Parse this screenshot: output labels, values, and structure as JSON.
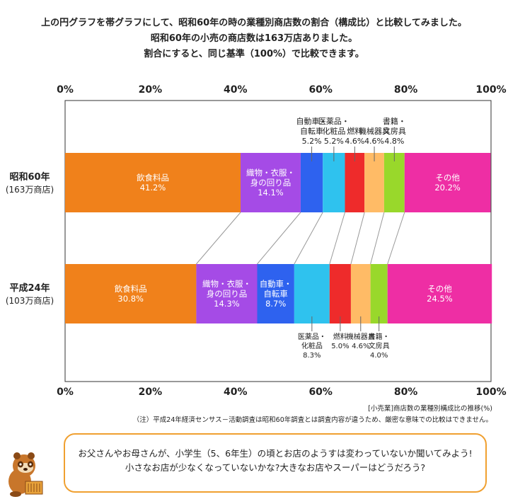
{
  "intro": {
    "line1": "上の円グラフを帯グラフにして、昭和60年の時の業種別商店数の割合（構成比）と比較してみました。",
    "line2": "昭和60年の小売の商店数は163万店ありました。",
    "line3": "割合にすると、同じ基準（100%）で比較できます。"
  },
  "chart_data": {
    "type": "bar",
    "orientation": "horizontal-stacked",
    "x_ticks": [
      "0%",
      "20%",
      "40%",
      "60%",
      "80%",
      "100%"
    ],
    "xlim": [
      0,
      100
    ],
    "series": [
      {
        "name": "飲食料品",
        "color": "#f0811b",
        "values": [
          41.2,
          30.8
        ]
      },
      {
        "name": "織物・衣服・身の回り品",
        "color": "#a54be6",
        "values": [
          14.1,
          14.3
        ]
      },
      {
        "name": "自動車・自転車",
        "color": "#2e62ef",
        "values": [
          5.2,
          8.7
        ]
      },
      {
        "name": "医薬品・化粧品",
        "color": "#2fc2ee",
        "values": [
          5.2,
          8.3
        ]
      },
      {
        "name": "燃料",
        "color": "#ee2b2b",
        "values": [
          4.6,
          5.0
        ]
      },
      {
        "name": "機械器具",
        "color": "#ffbb66",
        "values": [
          4.6,
          4.6
        ]
      },
      {
        "name": "書籍・文房具",
        "color": "#99d82b",
        "values": [
          4.8,
          4.0
        ]
      },
      {
        "name": "その他",
        "color": "#ee2ea4",
        "values": [
          20.2,
          24.5
        ]
      }
    ],
    "categories": [
      {
        "line1": "昭和60年",
        "line2": "(163万商店)"
      },
      {
        "line1": "平成24年",
        "line2": "(103万商店)"
      }
    ],
    "labels": [
      [
        {
          "pos": "inside",
          "lines": [
            "飲食料品",
            "41.2%"
          ]
        },
        {
          "pos": "inside",
          "lines": [
            "織物・衣服・",
            "身の回り品",
            "14.1%"
          ]
        },
        {
          "pos": "above",
          "lines": [
            "自動車・",
            "自転車",
            "5.2%"
          ]
        },
        {
          "pos": "above",
          "lines": [
            "医薬品・",
            "化粧品",
            "5.2%"
          ]
        },
        {
          "pos": "above",
          "lines": [
            "燃料",
            "4.6%"
          ]
        },
        {
          "pos": "above",
          "lines": [
            "機械器具",
            "4.6%"
          ]
        },
        {
          "pos": "above",
          "lines": [
            "書籍・",
            "文房具",
            "4.8%"
          ]
        },
        {
          "pos": "inside",
          "lines": [
            "その他",
            "20.2%"
          ]
        }
      ],
      [
        {
          "pos": "inside",
          "lines": [
            "飲食料品",
            "30.8%"
          ]
        },
        {
          "pos": "inside",
          "lines": [
            "織物・衣服・",
            "身の回り品",
            "14.3%"
          ]
        },
        {
          "pos": "inside",
          "lines": [
            "自動車・",
            "自転車",
            "8.7%"
          ]
        },
        {
          "pos": "below",
          "lines": [
            "医薬品・",
            "化粧品",
            "8.3%"
          ]
        },
        {
          "pos": "below",
          "lines": [
            "燃料",
            "5.0%"
          ]
        },
        {
          "pos": "below",
          "lines": [
            "機械器具",
            "4.6%"
          ]
        },
        {
          "pos": "below",
          "lines": [
            "書籍・",
            "文房具",
            "4.0%"
          ]
        },
        {
          "pos": "inside",
          "lines": [
            "その他",
            "24.5%"
          ]
        }
      ]
    ],
    "grid": false,
    "connector_lines": true
  },
  "notes": {
    "source": "[小売業]商店数の業種別構成比の推移(%)",
    "caveat": "（注）平成24年経済センサス－活動調査は昭和60年調査とは調査内容が違うため、厳密な意味での比較はできません。"
  },
  "speech": {
    "line1": "お父さんやお母さんが、小学生（5、6年生）の頃とお店のようすは変わっていないか聞いてみよう!",
    "line2": "小さなお店が少なくなっていないかな?大きなお店やスーパーはどうだろう?"
  },
  "mascot": {
    "icon": "tanuki-mascot-icon"
  }
}
